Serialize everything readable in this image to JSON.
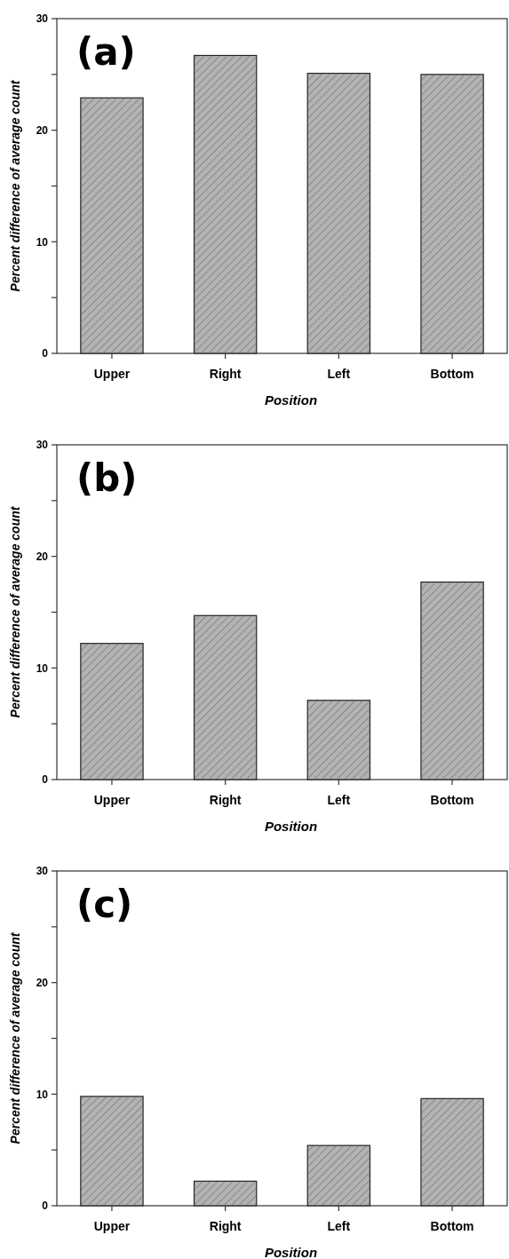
{
  "chart_data": [
    {
      "type": "bar",
      "title": "(a)",
      "xlabel": "Position",
      "ylabel": "Percent difference of average count",
      "categories": [
        "Upper",
        "Right",
        "Left",
        "Bottom"
      ],
      "values": [
        22.9,
        26.7,
        25.1,
        25.0
      ],
      "color": "#b3b3b3",
      "ylim": [
        0,
        30
      ],
      "yticks": [
        0,
        {
          "value": 5,
          "label": null
        },
        10,
        {
          "value": 15,
          "label": null
        },
        20,
        {
          "value": 25,
          "label": null
        },
        30
      ]
    },
    {
      "type": "bar",
      "title": "(b)",
      "xlabel": "Position",
      "ylabel": "Percent difference of average count",
      "categories": [
        "Upper",
        "Right",
        "Left",
        "Bottom"
      ],
      "values": [
        12.2,
        14.7,
        7.1,
        17.7
      ],
      "color": "#b3b3b3",
      "ylim": [
        0,
        30
      ],
      "yticks": [
        0,
        {
          "value": 5,
          "label": null
        },
        10,
        {
          "value": 15,
          "label": null
        },
        20,
        {
          "value": 25,
          "label": null
        },
        30
      ]
    },
    {
      "type": "bar",
      "title": "(c)",
      "xlabel": "Position",
      "ylabel": "Percent difference of average count",
      "categories": [
        "Upper",
        "Right",
        "Left",
        "Bottom"
      ],
      "values": [
        9.8,
        2.2,
        5.4,
        9.6
      ],
      "color": "#b3b3b3",
      "ylim": [
        0,
        30
      ],
      "yticks": [
        0,
        {
          "value": 5,
          "label": null
        },
        10,
        {
          "value": 15,
          "label": null
        },
        20,
        {
          "value": 25,
          "label": null
        },
        30
      ]
    }
  ]
}
